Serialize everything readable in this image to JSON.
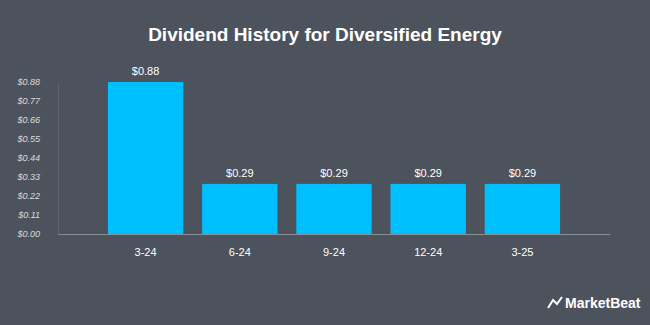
{
  "chart_data": {
    "type": "bar",
    "title": "Dividend History for Diversified Energy",
    "categories": [
      "3-24",
      "6-24",
      "9-24",
      "12-24",
      "3-25"
    ],
    "values": [
      0.88,
      0.29,
      0.29,
      0.29,
      0.29
    ],
    "value_labels": [
      "$0.88",
      "$0.29",
      "$0.29",
      "$0.29",
      "$0.29"
    ],
    "color": "#00bfff",
    "ylim": [
      0,
      0.88
    ],
    "yticks": [
      {
        "value": 0,
        "label": "$0.00"
      },
      {
        "value": 0.11,
        "label": "$0.11"
      },
      {
        "value": 0.22,
        "label": "$0.22"
      },
      {
        "value": 0.33,
        "label": "$0.33"
      },
      {
        "value": 0.44,
        "label": "$0.44"
      },
      {
        "value": 0.55,
        "label": "$0.55"
      },
      {
        "value": 0.66,
        "label": "$0.66"
      },
      {
        "value": 0.77,
        "label": "$0.77"
      },
      {
        "value": 0.88,
        "label": "$0.88"
      }
    ],
    "grid": false,
    "data_labels": true,
    "annotations": [
      "MarketBeat"
    ]
  }
}
